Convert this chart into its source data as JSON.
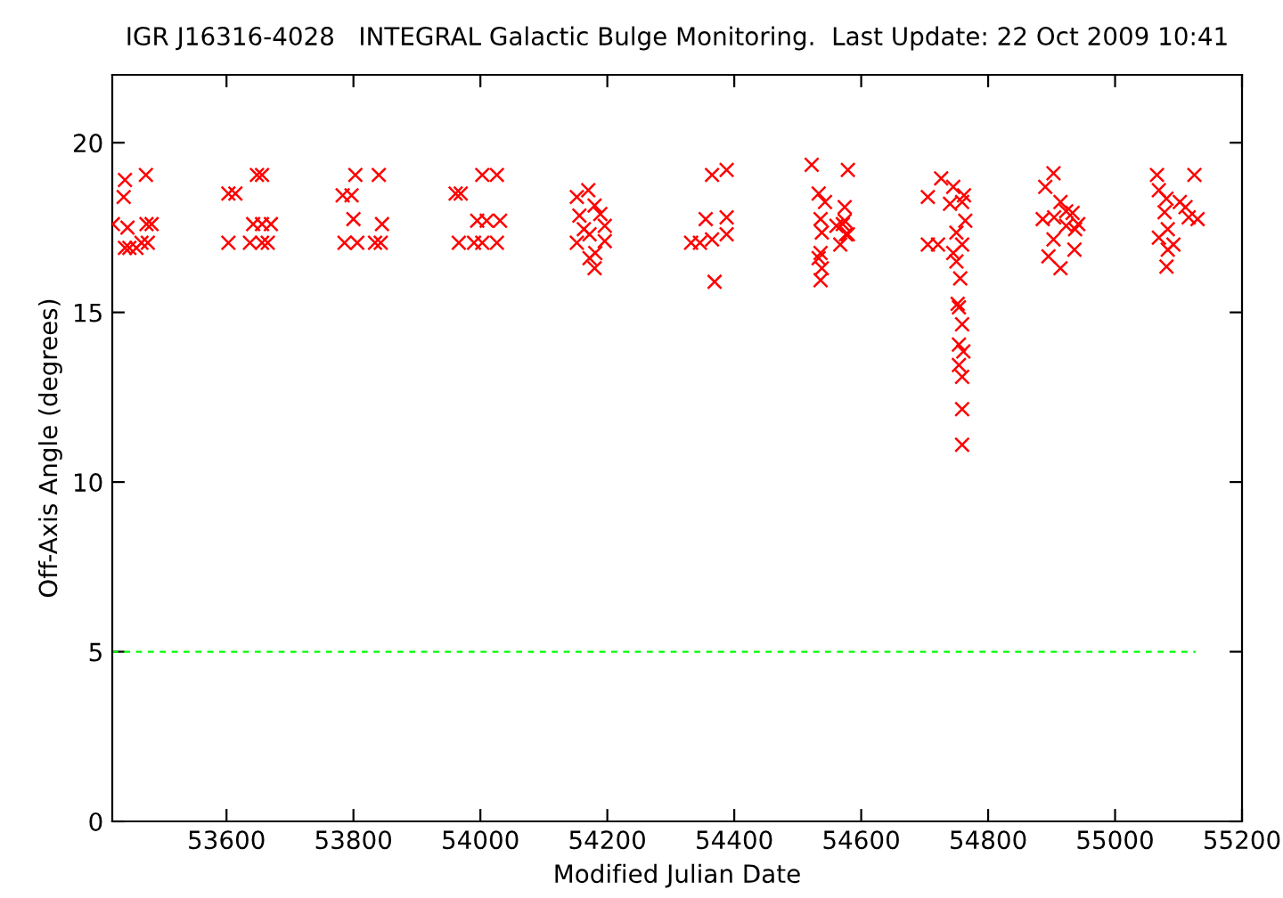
{
  "chart_data": {
    "type": "scatter",
    "title": "IGR J16316-4028   INTEGRAL Galactic Bulge Monitoring.  Last Update: 22 Oct 2009 10:41",
    "xlabel": "Modified Julian Date",
    "ylabel": "Off-Axis Angle (degrees)",
    "xlim": [
      53420,
      55200
    ],
    "xticks": [
      53600,
      53800,
      54000,
      54200,
      54400,
      54600,
      54800,
      55000,
      55200
    ],
    "ylim": [
      0,
      22
    ],
    "yticks": [
      0,
      5,
      10,
      15,
      20
    ],
    "grid": false,
    "marker": "cross",
    "series": [
      {
        "color": "#ff0000",
        "x": [
          53421,
          53438,
          53440,
          53444,
          53440,
          53447,
          53458,
          53473,
          53474,
          53482,
          53466,
          53476,
          53603,
          53614,
          53648,
          53656,
          53603,
          53637,
          53656,
          53665,
          53642,
          53656,
          53670,
          53783,
          53797,
          53803,
          53840,
          53800,
          53845,
          53786,
          53806,
          53834,
          53843,
          53961,
          53969,
          54003,
          54026,
          53995,
          54010,
          54031,
          53966,
          53990,
          54003,
          54026,
          54152,
          54170,
          54180,
          54189,
          54156,
          54163,
          54196,
          54172,
          54152,
          54196,
          54181,
          54172,
          54180,
          54365,
          54388,
          54355,
          54388,
          54332,
          54346,
          54365,
          54388,
          54369,
          54522,
          54579,
          54533,
          54543,
          54536,
          54574,
          54571,
          54538,
          54576,
          54567,
          54536,
          54533,
          54538,
          54536,
          54574,
          54561,
          54579,
          54726,
          54745,
          54705,
          54740,
          54759,
          54762,
          54764,
          54750,
          54759,
          54705,
          54721,
          54745,
          54750,
          54756,
          54752,
          54754,
          54759,
          54754,
          54761,
          54754,
          54759,
          54759,
          54759,
          54903,
          54890,
          54914,
          54886,
          54904,
          54923,
          54933,
          54942,
          54923,
          54937,
          54903,
          54895,
          54936,
          54914,
          55066,
          55125,
          55069,
          55081,
          55102,
          55111,
          55078,
          55116,
          55130,
          55083,
          55069,
          55092,
          55083,
          55081
        ],
        "values": [
          17.6,
          18.4,
          18.9,
          17.5,
          16.9,
          16.9,
          16.9,
          19.05,
          17.6,
          17.6,
          17.05,
          17.05,
          18.5,
          18.5,
          19.05,
          19.05,
          17.05,
          17.05,
          17.05,
          17.05,
          17.6,
          17.6,
          17.6,
          18.45,
          18.45,
          19.05,
          19.05,
          17.75,
          17.6,
          17.05,
          17.05,
          17.05,
          17.05,
          18.5,
          18.5,
          19.05,
          19.05,
          17.7,
          17.7,
          17.7,
          17.05,
          17.05,
          17.05,
          17.05,
          18.4,
          18.6,
          18.15,
          17.9,
          17.85,
          17.45,
          17.55,
          17.3,
          17.05,
          17.1,
          16.75,
          16.6,
          16.3,
          19.05,
          19.2,
          17.75,
          17.8,
          17.05,
          17.05,
          17.15,
          17.3,
          15.9,
          19.35,
          19.2,
          18.5,
          18.25,
          17.75,
          18.1,
          17.6,
          17.35,
          17.3,
          17.0,
          16.75,
          16.6,
          16.3,
          15.95,
          17.7,
          17.55,
          17.3,
          18.95,
          18.7,
          18.4,
          18.2,
          18.25,
          18.45,
          17.7,
          17.35,
          17.0,
          17.0,
          17.0,
          16.75,
          16.5,
          16.0,
          15.25,
          15.15,
          14.65,
          14.05,
          13.85,
          13.45,
          13.1,
          12.15,
          11.1,
          19.1,
          18.7,
          18.25,
          17.75,
          17.8,
          17.98,
          17.93,
          17.6,
          17.55,
          17.45,
          17.15,
          16.65,
          16.85,
          16.3,
          19.05,
          19.05,
          18.6,
          18.35,
          18.25,
          18.1,
          17.95,
          17.8,
          17.75,
          17.45,
          17.2,
          17.0,
          16.85,
          16.35
        ]
      },
      {
        "type": "line",
        "color": "#00ff00",
        "line_style": "dashed",
        "marker": "none",
        "x": [
          53420,
          55127
        ],
        "values": [
          5,
          5
        ]
      }
    ]
  }
}
